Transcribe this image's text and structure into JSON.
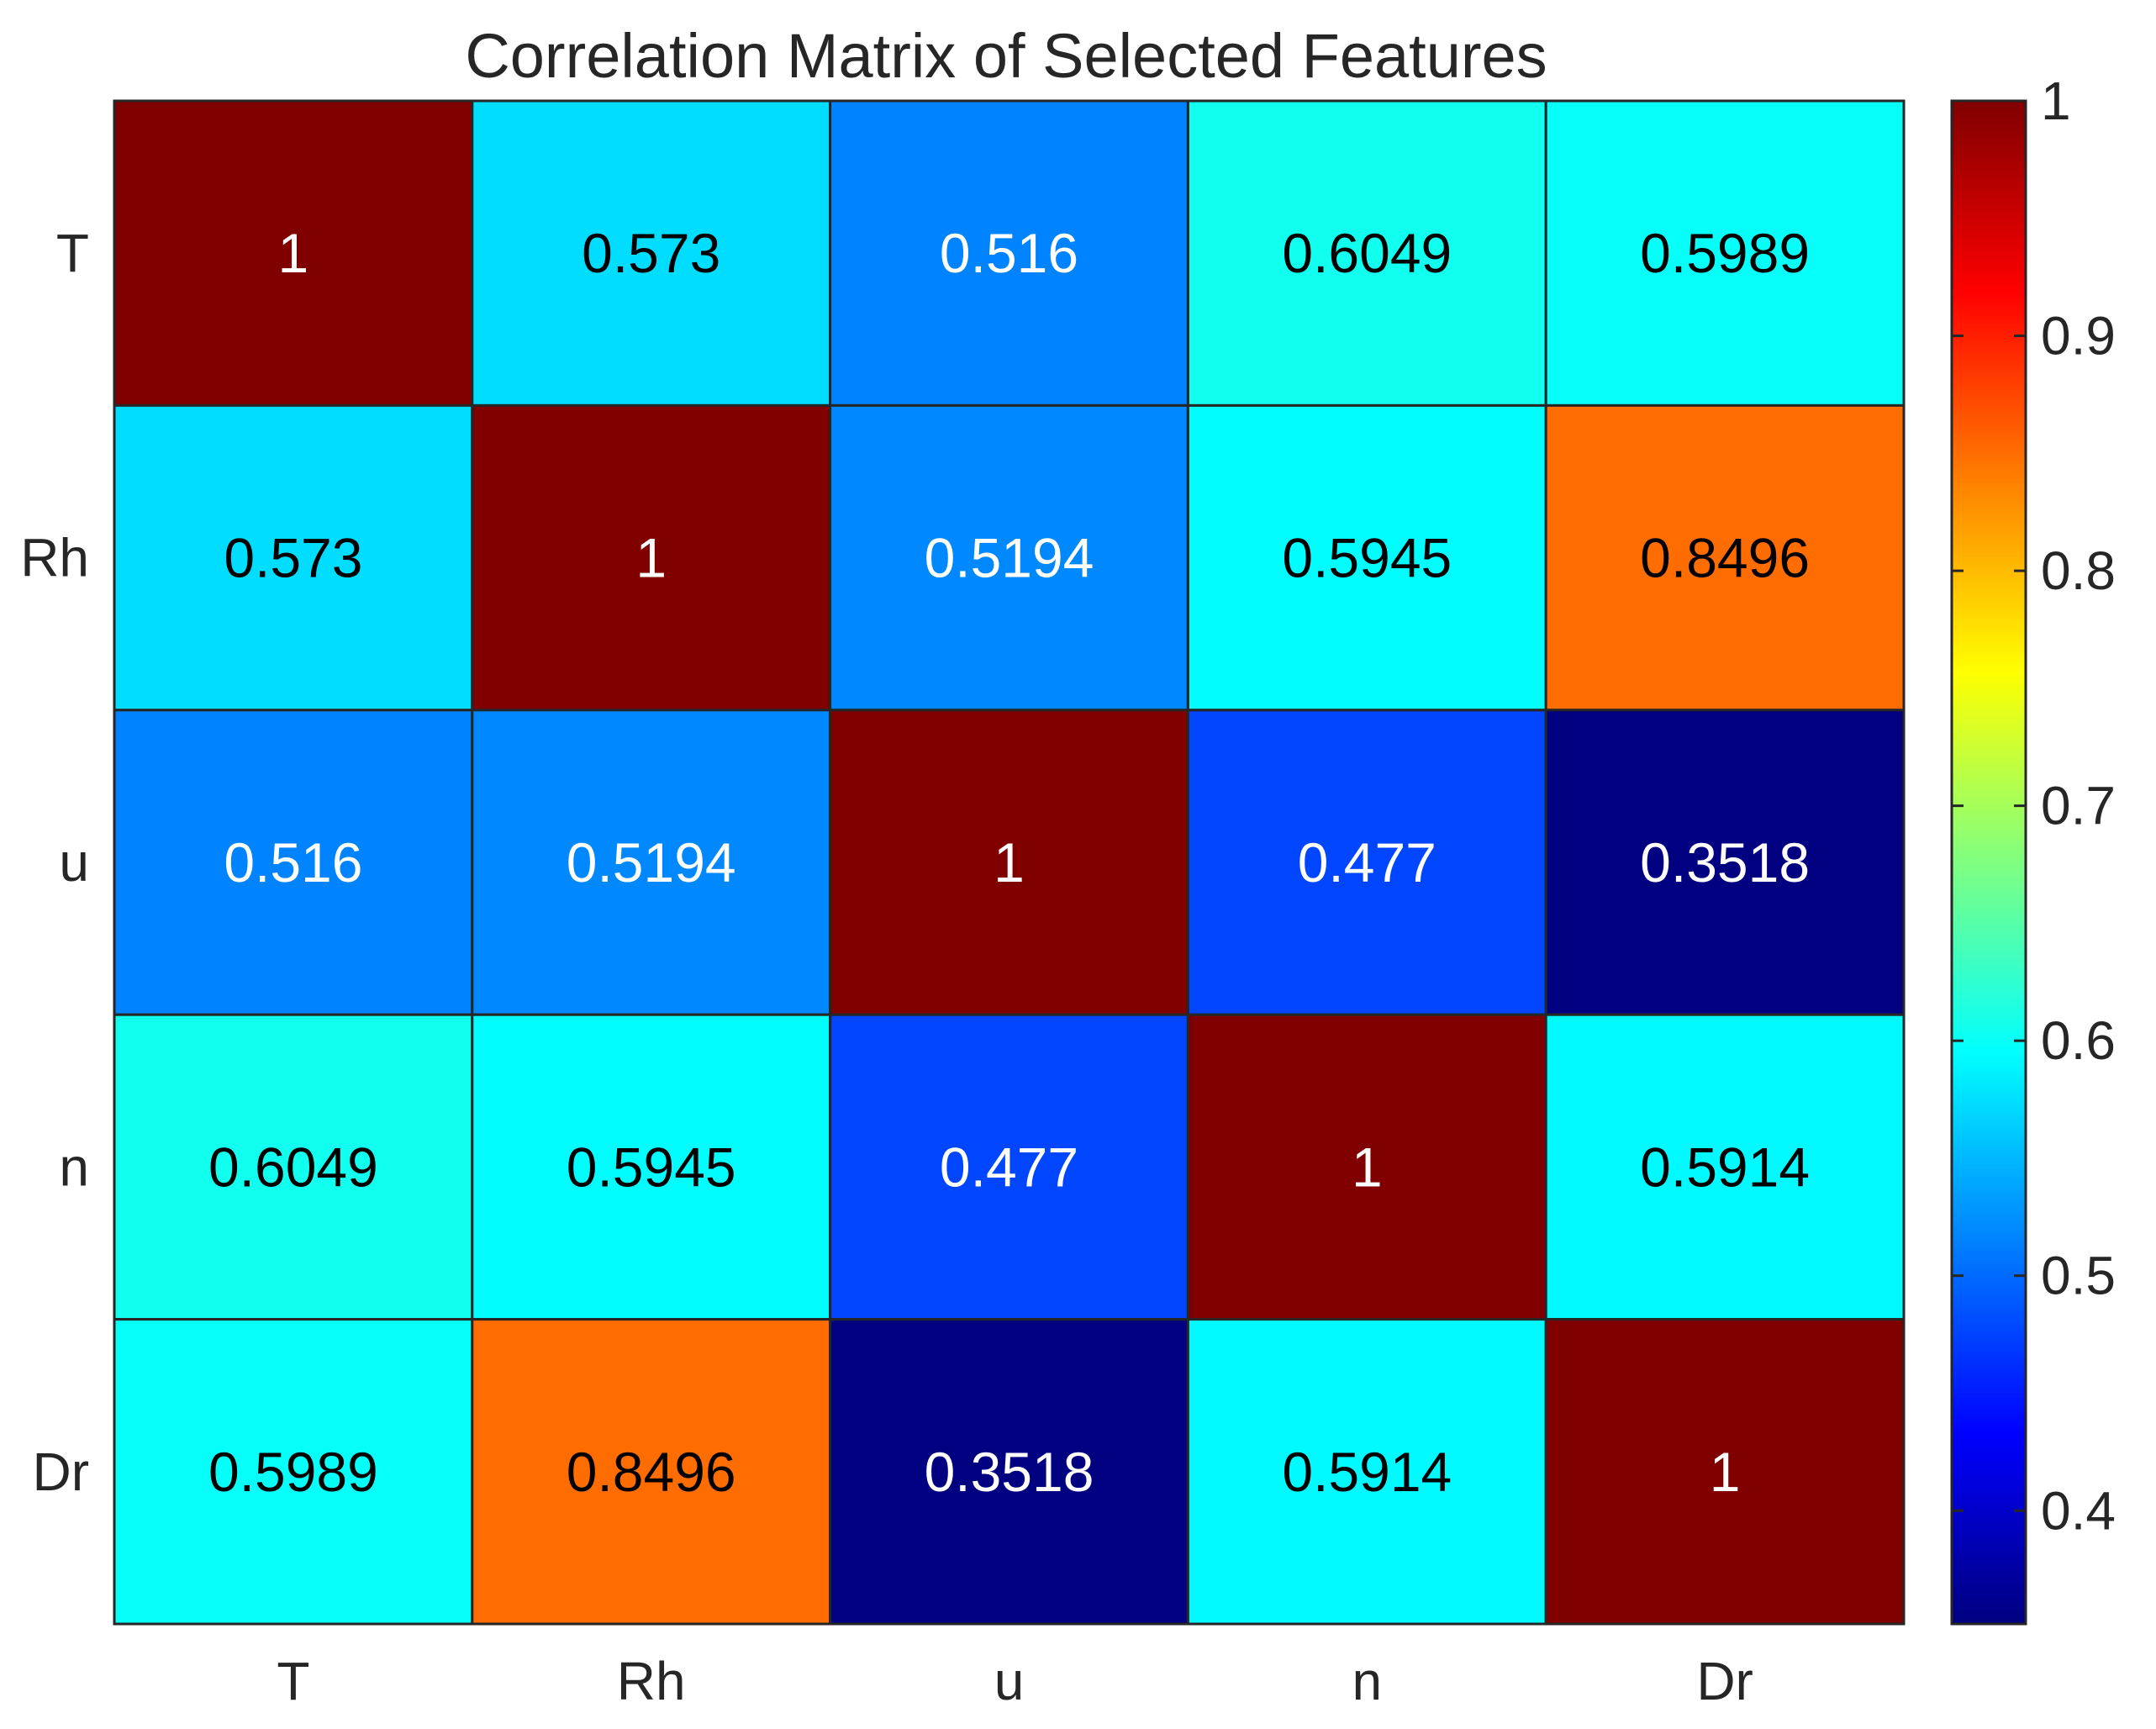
{
  "chart_data": {
    "type": "heatmap",
    "title": "Correlation Matrix of Selected Features",
    "xlabel": "",
    "ylabel": "",
    "x_labels": [
      "T",
      "Rh",
      "u",
      "n",
      "Dr"
    ],
    "y_labels": [
      "T",
      "Rh",
      "u",
      "n",
      "Dr"
    ],
    "values": [
      [
        1,
        0.573,
        0.516,
        0.6049,
        0.5989
      ],
      [
        0.573,
        1,
        0.5194,
        0.5945,
        0.8496
      ],
      [
        0.516,
        0.5194,
        1,
        0.477,
        0.3518
      ],
      [
        0.6049,
        0.5945,
        0.477,
        1,
        0.5914
      ],
      [
        0.5989,
        0.8496,
        0.3518,
        0.5914,
        1
      ]
    ],
    "value_labels": [
      [
        "1",
        "0.573",
        "0.516",
        "0.6049",
        "0.5989"
      ],
      [
        "0.573",
        "1",
        "0.5194",
        "0.5945",
        "0.8496"
      ],
      [
        "0.516",
        "0.5194",
        "1",
        "0.477",
        "0.3518"
      ],
      [
        "0.6049",
        "0.5945",
        "0.477",
        "1",
        "0.5914"
      ],
      [
        "0.5989",
        "0.8496",
        "0.3518",
        "0.5914",
        "1"
      ]
    ],
    "colormap": "jet",
    "colorbar": {
      "range": [
        0.3518,
        1
      ],
      "ticks": [
        0.4,
        0.5,
        0.6,
        0.7,
        0.8,
        0.9,
        1
      ],
      "tick_labels": [
        "0.4",
        "0.5",
        "0.6",
        "0.7",
        "0.8",
        "0.9",
        "1"
      ],
      "position": "right"
    },
    "colors": {
      "text": "#262626",
      "label_dark": "#000000",
      "label_light": "#ffffff",
      "cell_border": "#262626",
      "axis": "#262626"
    }
  }
}
